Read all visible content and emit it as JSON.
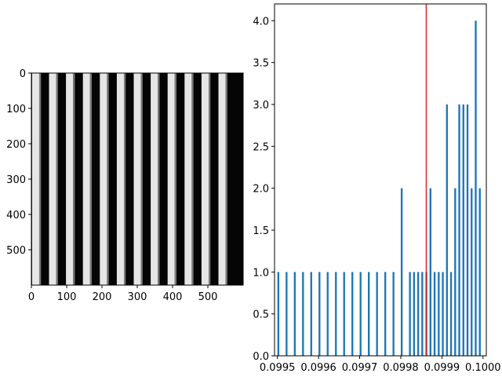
{
  "chart_data": [
    {
      "type": "image",
      "content": "vertical black-and-white stripe pattern (grayscale)",
      "stripe_count": 12,
      "stripe_period": 48,
      "xlim": [
        0,
        600
      ],
      "ylim": [
        600,
        0
      ],
      "xticks": [
        0,
        100,
        200,
        300,
        400,
        500
      ],
      "yticks": [
        0,
        100,
        200,
        300,
        400,
        500
      ]
    },
    {
      "type": "bar",
      "subtype": "histogram",
      "bar_color": "#1f77b4",
      "bar_width": 4.5e-06,
      "x": [
        0.0995,
        0.09952,
        0.09954,
        0.09956,
        0.09958,
        0.0996,
        0.09962,
        0.09964,
        0.09966,
        0.09968,
        0.0997,
        0.09972,
        0.09974,
        0.09976,
        0.09978,
        0.0998,
        0.09982,
        0.09983,
        0.09984,
        0.09985,
        0.09986,
        0.09987,
        0.09988,
        0.09989,
        0.0999,
        0.09991,
        0.09992,
        0.09993,
        0.09994,
        0.09995,
        0.09996,
        0.09997,
        0.09998,
        0.09999
      ],
      "values": [
        1,
        1,
        1,
        1,
        1,
        1,
        1,
        1,
        1,
        1,
        1,
        1,
        1,
        1,
        1,
        2,
        1,
        1,
        1,
        1,
        1,
        2,
        1,
        1,
        1,
        3,
        1,
        2,
        3,
        3,
        3,
        2,
        4,
        2
      ],
      "xlim": [
        0.099493,
        0.100008
      ],
      "ylim": [
        0,
        4.2
      ],
      "xticks": [
        "0.0995",
        "0.0996",
        "0.0997",
        "0.0998",
        "0.0999",
        "0.1000"
      ],
      "xtick_values": [
        0.0995,
        0.0996,
        0.0997,
        0.0998,
        0.0999,
        0.1
      ],
      "yticks": [
        "0.0",
        "0.5",
        "1.0",
        "1.5",
        "2.0",
        "2.5",
        "3.0",
        "3.5",
        "4.0"
      ],
      "ytick_values": [
        0,
        0.5,
        1.0,
        1.5,
        2.0,
        2.5,
        3.0,
        3.5,
        4.0
      ],
      "vline": {
        "x": 0.099862,
        "color": "#d62728"
      }
    }
  ]
}
